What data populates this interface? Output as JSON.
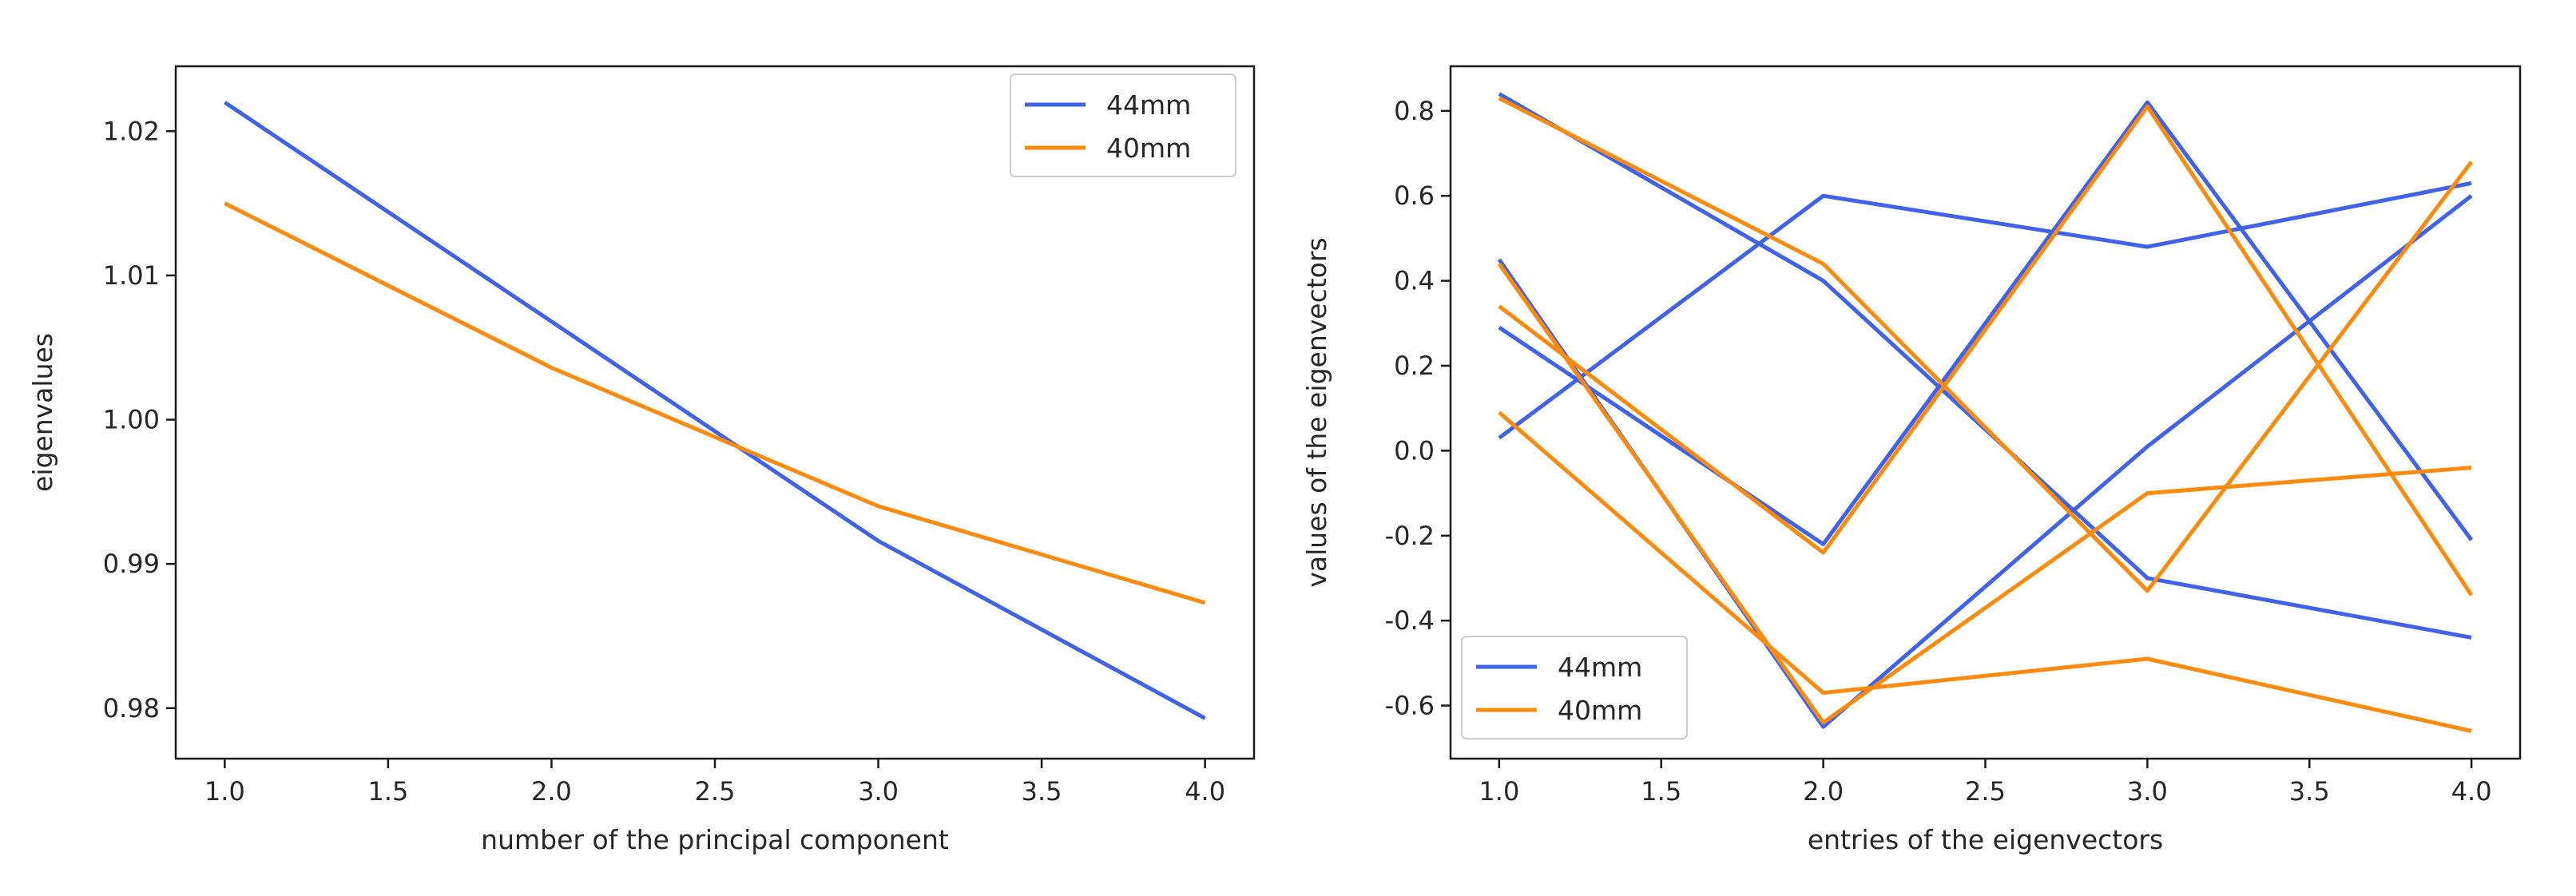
{
  "chart_data": [
    {
      "type": "line",
      "title": "",
      "xlabel": "number of the principal component",
      "ylabel": "eigenvalues",
      "xlim": [
        0.85,
        4.15
      ],
      "ylim": [
        0.9765,
        1.0245
      ],
      "xticks": [
        1.0,
        1.5,
        2.0,
        2.5,
        3.0,
        3.5,
        4.0
      ],
      "xtick_labels": [
        "1.0",
        "1.5",
        "2.0",
        "2.5",
        "3.0",
        "3.5",
        "4.0"
      ],
      "yticks": [
        0.98,
        0.99,
        1.0,
        1.01,
        1.02
      ],
      "ytick_labels": [
        "0.98",
        "0.99",
        "1.00",
        "1.01",
        "1.02"
      ],
      "legend_position": "top-right",
      "series": [
        {
          "name": "44mm",
          "color": "#4062e8",
          "x": [
            1,
            2,
            3,
            4
          ],
          "values": [
            1.022,
            1.0068,
            0.9916,
            0.9793
          ]
        },
        {
          "name": "40mm",
          "color": "#fa8b0e",
          "x": [
            1,
            2,
            3,
            4
          ],
          "values": [
            1.015,
            1.0036,
            0.994,
            0.9873
          ]
        }
      ]
    },
    {
      "type": "line",
      "title": "",
      "xlabel": "entries of the eigenvectors",
      "ylabel": "values of the eigenvectors",
      "xlim": [
        0.85,
        4.15
      ],
      "ylim": [
        -0.725,
        0.905
      ],
      "xticks": [
        1.0,
        1.5,
        2.0,
        2.5,
        3.0,
        3.5,
        4.0
      ],
      "xtick_labels": [
        "1.0",
        "1.5",
        "2.0",
        "2.5",
        "3.0",
        "3.5",
        "4.0"
      ],
      "yticks": [
        -0.6,
        -0.4,
        -0.2,
        0.0,
        0.2,
        0.4,
        0.6,
        0.8
      ],
      "ytick_labels": [
        "-0.6",
        "-0.4",
        "-0.2",
        "0.0",
        "0.2",
        "0.4",
        "0.6",
        "0.8"
      ],
      "legend_position": "bottom-left",
      "legend": [
        {
          "name": "44mm",
          "color": "#4062e8"
        },
        {
          "name": "40mm",
          "color": "#fa8b0e"
        }
      ],
      "series": [
        {
          "name": "44mm",
          "color": "#4062e8",
          "x": [
            1,
            2,
            3,
            4
          ],
          "values": [
            0.84,
            0.4,
            -0.3,
            -0.44
          ]
        },
        {
          "name": "44mm",
          "color": "#4062e8",
          "x": [
            1,
            2,
            3,
            4
          ],
          "values": [
            0.03,
            0.6,
            0.48,
            0.63
          ]
        },
        {
          "name": "44mm",
          "color": "#4062e8",
          "x": [
            1,
            2,
            3,
            4
          ],
          "values": [
            0.45,
            -0.65,
            0.01,
            0.6
          ]
        },
        {
          "name": "44mm",
          "color": "#4062e8",
          "x": [
            1,
            2,
            3,
            4
          ],
          "values": [
            0.29,
            -0.22,
            0.82,
            -0.21
          ]
        },
        {
          "name": "40mm",
          "color": "#fa8b0e",
          "x": [
            1,
            2,
            3,
            4
          ],
          "values": [
            0.83,
            0.44,
            -0.33,
            0.68
          ]
        },
        {
          "name": "40mm",
          "color": "#fa8b0e",
          "x": [
            1,
            2,
            3,
            4
          ],
          "values": [
            0.34,
            -0.24,
            0.81,
            -0.34
          ]
        },
        {
          "name": "40mm",
          "color": "#fa8b0e",
          "x": [
            1,
            2,
            3,
            4
          ],
          "values": [
            0.09,
            -0.57,
            -0.49,
            -0.66
          ]
        },
        {
          "name": "40mm",
          "color": "#fa8b0e",
          "x": [
            1,
            2,
            3,
            4
          ],
          "values": [
            0.44,
            -0.64,
            -0.1,
            -0.04
          ]
        }
      ]
    }
  ]
}
